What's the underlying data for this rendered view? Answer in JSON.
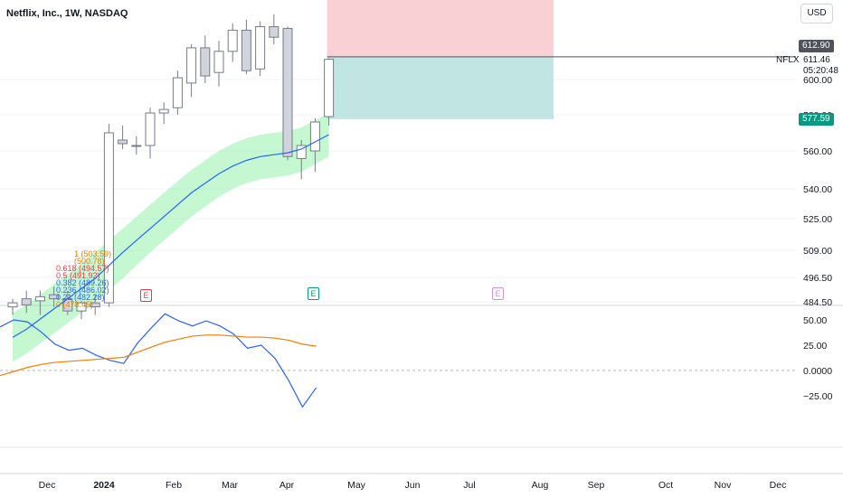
{
  "header": {
    "title": "Netflix, Inc., 1W, NASDAQ",
    "currency_button": "USD"
  },
  "symbol_label": "NFLX",
  "price_panel": {
    "current_price": "611.46",
    "countdown": "05:20:48",
    "upper_tag": "612.90",
    "lower_tag": "577.59",
    "upper_tag_color": "#50535e",
    "lower_tag_color": "#089981"
  },
  "colors": {
    "up_candle": "#ffffff",
    "down_candle": "#d1d4dc",
    "candle_outline": "#787b86",
    "ma_blue": "#2962ff",
    "ma_orange": "#f57c00",
    "band_fill": "#7ff09a",
    "stop_zone": "#f7c6c9",
    "target_zone": "#b2dfdb",
    "grid": "#f0f3fa"
  },
  "earnings_markers": [
    {
      "label": "E",
      "color": "#f23645",
      "icon": "earnings-past-icon"
    },
    {
      "label": "E",
      "color": "#089981",
      "icon": "earnings-icon"
    },
    {
      "label": "E",
      "color": "#ce93d8",
      "icon": "earnings-future-icon"
    }
  ],
  "fib_labels": [
    {
      "text": "1 (503.59)",
      "color": "#f57c00"
    },
    {
      "text": "(500.78)",
      "color": "#f57c00"
    },
    {
      "text": "0.618 (494.57)",
      "color": "#f23645"
    },
    {
      "text": "0.5 (491.92)",
      "color": "#f23645"
    },
    {
      "text": "0.382 (489.26)",
      "color": "#2962ff"
    },
    {
      "text": "0.236 (486.02)",
      "color": "#2962ff"
    },
    {
      "text": "0.21 (482.28)",
      "color": "#2962ff"
    },
    {
      "text": "0 (478.45)",
      "color": "#f57c00"
    }
  ],
  "chart_data": [
    {
      "type": "candlestick",
      "title": "Netflix, Inc., 1W, NASDAQ",
      "ylim": [
        480,
        640
      ],
      "y_ticks": [
        "600.00",
        "580.00",
        "560.00",
        "540.00",
        "525.00",
        "509.00",
        "496.50",
        "484.50"
      ],
      "y_tick_values": [
        600,
        580,
        560,
        540,
        525,
        509,
        496.5,
        484.5
      ],
      "x_ticks": [
        "Dec",
        "2024",
        "Feb",
        "Mar",
        "Apr",
        "May",
        "Jun",
        "Jul",
        "Aug",
        "Sep",
        "Oct",
        "Nov",
        "Dec"
      ],
      "candles": [
        {
          "o": 482,
          "h": 486,
          "l": 478,
          "c": 484
        },
        {
          "o": 486,
          "h": 490,
          "l": 479,
          "c": 483
        },
        {
          "o": 485,
          "h": 490,
          "l": 478,
          "c": 487
        },
        {
          "o": 488,
          "h": 492,
          "l": 482,
          "c": 486
        },
        {
          "o": 486,
          "h": 490,
          "l": 478,
          "c": 480
        },
        {
          "o": 480,
          "h": 485,
          "l": 476,
          "c": 484
        },
        {
          "o": 484,
          "h": 488,
          "l": 478,
          "c": 482
        },
        {
          "o": 484,
          "h": 575,
          "l": 482,
          "c": 570
        },
        {
          "o": 566,
          "h": 574,
          "l": 561,
          "c": 564
        },
        {
          "o": 563,
          "h": 568,
          "l": 558,
          "c": 563
        },
        {
          "o": 563,
          "h": 584,
          "l": 556,
          "c": 581
        },
        {
          "o": 581,
          "h": 587,
          "l": 575,
          "c": 583
        },
        {
          "o": 584,
          "h": 605,
          "l": 580,
          "c": 601
        },
        {
          "o": 598,
          "h": 620,
          "l": 590,
          "c": 618
        },
        {
          "o": 618,
          "h": 625,
          "l": 598,
          "c": 602
        },
        {
          "o": 604,
          "h": 622,
          "l": 596,
          "c": 616
        },
        {
          "o": 616,
          "h": 632,
          "l": 610,
          "c": 628
        },
        {
          "o": 628,
          "h": 634,
          "l": 603,
          "c": 605
        },
        {
          "o": 606,
          "h": 633,
          "l": 602,
          "c": 630
        },
        {
          "o": 630,
          "h": 637,
          "l": 620,
          "c": 624
        },
        {
          "o": 629,
          "h": 630,
          "l": 555,
          "c": 557
        },
        {
          "o": 556,
          "h": 566,
          "l": 545,
          "c": 563
        },
        {
          "o": 560,
          "h": 578,
          "l": 549,
          "c": 576
        },
        {
          "o": 579,
          "h": 612,
          "l": 574,
          "c": 611.46
        }
      ],
      "moving_average": [
        467,
        471,
        476,
        481,
        486,
        491,
        496,
        502,
        508,
        514,
        520,
        526,
        532,
        538,
        543,
        548,
        552,
        555,
        557,
        558,
        559,
        561,
        565,
        569
      ],
      "position": {
        "entry": 612.9,
        "target": 577.59,
        "stop": 650
      }
    },
    {
      "type": "line",
      "y_ticks": [
        "50.00",
        "25.00",
        "0.0000",
        "−25.00"
      ],
      "y_tick_values": [
        50,
        25,
        0,
        -25
      ],
      "ylim": [
        -50,
        65
      ],
      "series": [
        {
          "color": "#2962ff",
          "values": [
            43,
            50,
            48,
            38,
            26,
            20,
            22,
            15,
            10,
            7,
            27,
            42,
            56,
            49,
            44,
            49,
            44,
            36,
            22,
            25,
            12,
            -10,
            -36,
            -17
          ]
        },
        {
          "color": "#f57c00",
          "values": [
            -5,
            -1,
            3,
            6,
            8,
            9,
            10,
            11,
            12,
            13,
            18,
            23,
            28,
            31,
            34,
            35,
            35,
            34,
            33,
            33,
            32,
            30,
            26,
            24
          ]
        }
      ]
    }
  ]
}
